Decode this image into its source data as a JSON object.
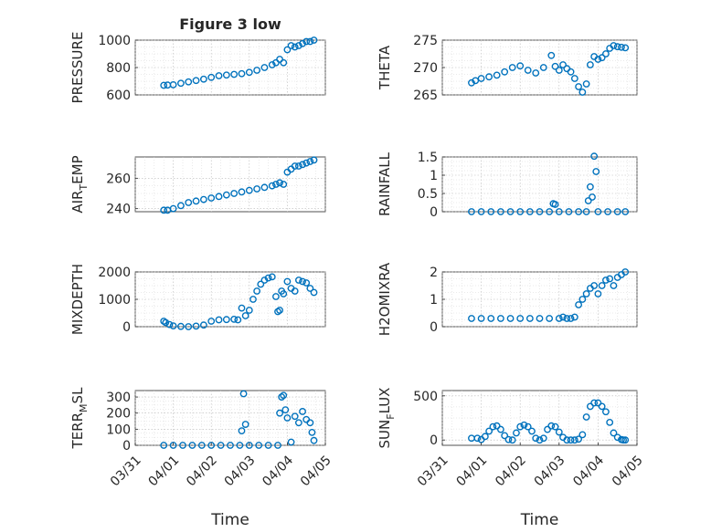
{
  "chart_data": [
    {
      "type": "scatter",
      "name": "pressure",
      "title": "Figure 3 low",
      "xlabel": "",
      "ylabel": "PRESSURE",
      "ylim": [
        600,
        1000
      ],
      "yticks": [
        "600",
        "800",
        "1000"
      ],
      "xlim": [
        "03/31",
        "04/05"
      ],
      "color": "#0072BD",
      "x": [
        0.75,
        0.85,
        1.0,
        1.2,
        1.4,
        1.6,
        1.8,
        2.0,
        2.2,
        2.4,
        2.6,
        2.8,
        3.0,
        3.2,
        3.4,
        3.6,
        3.7,
        3.8,
        3.9,
        4.0,
        4.1,
        4.2,
        4.3,
        4.4,
        4.5,
        4.6,
        4.7
      ],
      "y": [
        670,
        672,
        674,
        685,
        695,
        705,
        715,
        728,
        740,
        745,
        750,
        755,
        765,
        780,
        800,
        820,
        835,
        860,
        835,
        930,
        960,
        950,
        960,
        975,
        990,
        990,
        1000
      ]
    },
    {
      "type": "scatter",
      "name": "theta",
      "xlabel": "",
      "ylabel": "THETA",
      "ylim": [
        265,
        275
      ],
      "yticks": [
        "265",
        "270",
        "275"
      ],
      "xlim": [
        "03/31",
        "04/05"
      ],
      "color": "#0072BD",
      "x": [
        0.75,
        0.85,
        1.0,
        1.2,
        1.4,
        1.6,
        1.8,
        2.0,
        2.2,
        2.4,
        2.6,
        2.8,
        2.9,
        3.0,
        3.1,
        3.2,
        3.3,
        3.4,
        3.5,
        3.6,
        3.7,
        3.8,
        3.9,
        4.0,
        4.1,
        4.2,
        4.3,
        4.4,
        4.5,
        4.6,
        4.7
      ],
      "y": [
        267.2,
        267.6,
        268.0,
        268.3,
        268.6,
        269.2,
        270.0,
        270.3,
        269.5,
        269.0,
        270.0,
        272.2,
        270.2,
        269.5,
        270.5,
        269.8,
        269.2,
        268.0,
        266.5,
        265.5,
        267.0,
        270.5,
        272.0,
        271.5,
        271.8,
        272.5,
        273.5,
        274.0,
        273.8,
        273.7,
        273.6
      ]
    },
    {
      "type": "scatter",
      "name": "air-temp",
      "xlabel": "",
      "ylabel": "AIR_TEMP",
      "ylim": [
        238,
        274
      ],
      "yticks": [
        "240",
        "260"
      ],
      "xlim": [
        "03/31",
        "04/05"
      ],
      "color": "#0072BD",
      "x": [
        0.75,
        0.85,
        1.0,
        1.2,
        1.4,
        1.6,
        1.8,
        2.0,
        2.2,
        2.4,
        2.6,
        2.8,
        3.0,
        3.2,
        3.4,
        3.6,
        3.7,
        3.8,
        3.9,
        4.0,
        4.1,
        4.2,
        4.3,
        4.4,
        4.5,
        4.6,
        4.7
      ],
      "y": [
        239,
        239,
        240,
        242,
        244,
        245,
        246,
        247,
        248,
        249,
        250,
        251,
        252,
        253,
        254,
        255,
        256,
        257,
        256,
        264,
        266,
        268,
        268,
        269,
        270,
        271,
        272
      ]
    },
    {
      "type": "scatter",
      "name": "rainfall",
      "xlabel": "",
      "ylabel": "RAINFALL",
      "ylim": [
        0,
        1.5
      ],
      "yticks": [
        "0",
        "0.5",
        "1",
        "1.5"
      ],
      "xlim": [
        "03/31",
        "04/05"
      ],
      "color": "#0072BD",
      "x": [
        0.75,
        1.0,
        1.25,
        1.5,
        1.75,
        2.0,
        2.25,
        2.5,
        2.75,
        2.85,
        2.9,
        3.0,
        3.25,
        3.5,
        3.7,
        3.75,
        3.8,
        3.85,
        3.9,
        3.95,
        4.0,
        4.25,
        4.5,
        4.7
      ],
      "y": [
        0,
        0,
        0,
        0,
        0,
        0,
        0,
        0,
        0,
        0.22,
        0.2,
        0,
        0,
        0,
        0,
        0.3,
        0.68,
        0.4,
        1.52,
        1.1,
        0,
        0,
        0,
        0
      ]
    },
    {
      "type": "scatter",
      "name": "mixdepth",
      "xlabel": "",
      "ylabel": "MIXDEPTH",
      "ylim": [
        0,
        2000
      ],
      "yticks": [
        "0",
        "1000",
        "2000"
      ],
      "xlim": [
        "03/31",
        "04/05"
      ],
      "color": "#0072BD",
      "x": [
        0.75,
        0.8,
        0.9,
        1.0,
        1.2,
        1.4,
        1.6,
        1.8,
        2.0,
        2.2,
        2.4,
        2.6,
        2.7,
        2.8,
        2.9,
        3.0,
        3.1,
        3.2,
        3.3,
        3.4,
        3.5,
        3.6,
        3.7,
        3.75,
        3.8,
        3.85,
        3.9,
        4.0,
        4.1,
        4.2,
        4.3,
        4.4,
        4.5,
        4.6,
        4.7
      ],
      "y": [
        200,
        150,
        80,
        30,
        10,
        0,
        20,
        60,
        200,
        250,
        260,
        270,
        250,
        680,
        400,
        600,
        1000,
        1300,
        1550,
        1700,
        1780,
        1820,
        1100,
        550,
        600,
        1300,
        1200,
        1650,
        1400,
        1300,
        1700,
        1650,
        1600,
        1400,
        1250
      ]
    },
    {
      "type": "scatter",
      "name": "h2omixra",
      "xlabel": "",
      "ylabel": "H2OMIXRA",
      "ylim": [
        0,
        2
      ],
      "yticks": [
        "0",
        "1",
        "2"
      ],
      "xlim": [
        "03/31",
        "04/05"
      ],
      "color": "#0072BD",
      "x": [
        0.75,
        1.0,
        1.25,
        1.5,
        1.75,
        2.0,
        2.25,
        2.5,
        2.75,
        3.0,
        3.1,
        3.2,
        3.3,
        3.4,
        3.5,
        3.6,
        3.7,
        3.8,
        3.9,
        4.0,
        4.1,
        4.2,
        4.3,
        4.4,
        4.5,
        4.6,
        4.7
      ],
      "y": [
        0.3,
        0.3,
        0.3,
        0.3,
        0.3,
        0.3,
        0.3,
        0.3,
        0.3,
        0.3,
        0.35,
        0.3,
        0.3,
        0.35,
        0.8,
        1.0,
        1.2,
        1.4,
        1.5,
        1.2,
        1.5,
        1.7,
        1.75,
        1.5,
        1.8,
        1.9,
        2.0
      ]
    },
    {
      "type": "scatter",
      "name": "terr-msl",
      "xlabel": "Time",
      "ylabel": "TERR_MSL",
      "ylim": [
        0,
        340
      ],
      "yticks": [
        "0",
        "100",
        "200",
        "300"
      ],
      "xticks": [
        "03/31",
        "04/01",
        "04/02",
        "04/03",
        "04/04",
        "04/05"
      ],
      "xlim": [
        "03/31",
        "04/05"
      ],
      "color": "#0072BD",
      "x": [
        0.75,
        1.0,
        1.25,
        1.5,
        1.75,
        2.0,
        2.25,
        2.5,
        2.75,
        2.8,
        2.85,
        2.9,
        3.0,
        3.25,
        3.5,
        3.75,
        3.8,
        3.85,
        3.9,
        3.95,
        4.0,
        4.1,
        4.2,
        4.3,
        4.4,
        4.5,
        4.6,
        4.65,
        4.7
      ],
      "y": [
        0,
        0,
        0,
        0,
        0,
        0,
        0,
        0,
        0,
        90,
        320,
        130,
        0,
        0,
        0,
        0,
        200,
        300,
        310,
        220,
        170,
        20,
        180,
        140,
        210,
        160,
        140,
        80,
        30
      ]
    },
    {
      "type": "scatter",
      "name": "sun-flux",
      "xlabel": "Time",
      "ylabel": "SUN_FLUX",
      "ylim": [
        -60,
        560
      ],
      "yticks": [
        "0",
        "500"
      ],
      "xticks": [
        "03/31",
        "04/01",
        "04/02",
        "04/03",
        "04/04",
        "04/05"
      ],
      "xlim": [
        "03/31",
        "04/05"
      ],
      "color": "#0072BD",
      "x": [
        0.75,
        0.9,
        1.0,
        1.1,
        1.2,
        1.3,
        1.4,
        1.5,
        1.6,
        1.7,
        1.8,
        1.9,
        2.0,
        2.1,
        2.2,
        2.3,
        2.4,
        2.5,
        2.6,
        2.7,
        2.8,
        2.9,
        3.0,
        3.1,
        3.2,
        3.3,
        3.4,
        3.5,
        3.6,
        3.7,
        3.8,
        3.9,
        4.0,
        4.1,
        4.2,
        4.3,
        4.4,
        4.5,
        4.6,
        4.65,
        4.7
      ],
      "y": [
        20,
        20,
        5,
        40,
        100,
        150,
        160,
        120,
        50,
        5,
        0,
        80,
        150,
        170,
        150,
        100,
        20,
        0,
        20,
        120,
        160,
        150,
        90,
        30,
        0,
        0,
        0,
        10,
        60,
        260,
        380,
        420,
        420,
        380,
        320,
        200,
        80,
        30,
        5,
        0,
        0
      ]
    }
  ]
}
